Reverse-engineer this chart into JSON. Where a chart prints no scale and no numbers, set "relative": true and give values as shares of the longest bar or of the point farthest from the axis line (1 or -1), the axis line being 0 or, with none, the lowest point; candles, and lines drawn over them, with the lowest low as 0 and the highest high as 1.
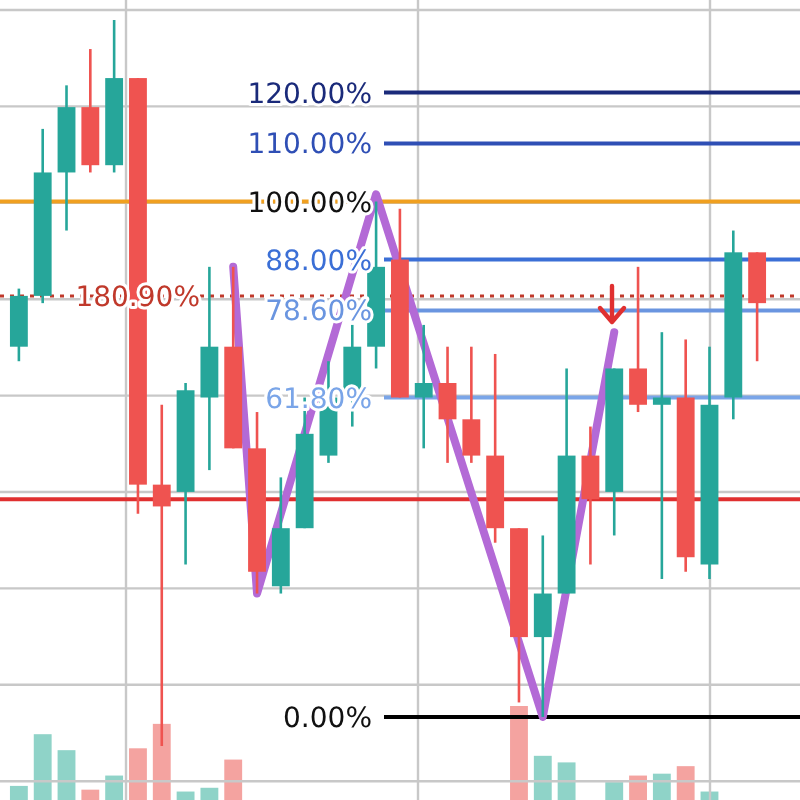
{
  "chart_data": [
    {
      "type": "candlestick",
      "relative": true,
      "grid": true,
      "categories": [
        null,
        null,
        null,
        null,
        null,
        null,
        null,
        null,
        null,
        null,
        null,
        null,
        null,
        null,
        null,
        null,
        null,
        null,
        null,
        null,
        null,
        null,
        null,
        null,
        null,
        null,
        null,
        null,
        null,
        null,
        null,
        null
      ],
      "ohlc": [
        [
          0.55,
          0.63,
          0.53,
          0.62
        ],
        [
          0.62,
          0.85,
          0.61,
          0.79
        ],
        [
          0.79,
          0.91,
          0.71,
          0.88
        ],
        [
          0.88,
          0.96,
          0.79,
          0.8
        ],
        [
          0.8,
          1,
          0.79,
          0.92
        ],
        [
          0.92,
          0.92,
          0.32,
          0.36
        ],
        [
          0.36,
          0.47,
          0,
          0.33
        ],
        [
          0.35,
          0.5,
          0.25,
          0.49
        ],
        [
          0.48,
          0.66,
          0.38,
          0.55
        ],
        [
          0.55,
          0.66,
          0.41,
          0.41
        ],
        [
          0.41,
          0.46,
          0.21,
          0.24
        ],
        [
          0.22,
          0.37,
          0.21,
          0.3
        ],
        [
          0.3,
          0.48,
          0.3,
          0.43
        ],
        [
          0.4,
          0.53,
          0.39,
          0.48
        ],
        [
          0.48,
          0.58,
          0.44,
          0.55
        ],
        [
          0.55,
          0.75,
          0.52,
          0.66
        ],
        [
          0.67,
          0.74,
          0.48,
          0.48
        ],
        [
          0.48,
          0.58,
          0.41,
          0.5
        ],
        [
          0.5,
          0.55,
          0.39,
          0.45
        ],
        [
          0.45,
          0.55,
          0.39,
          0.4
        ],
        [
          0.4,
          0.54,
          0.28,
          0.3
        ],
        [
          0.3,
          0.3,
          0.06,
          0.15
        ],
        [
          0.15,
          0.29,
          0.04,
          0.21
        ],
        [
          0.21,
          0.52,
          0.21,
          0.4
        ],
        [
          0.4,
          0.44,
          0.25,
          0.34
        ],
        [
          0.35,
          0.52,
          0.29,
          0.52
        ],
        [
          0.52,
          0.66,
          0.46,
          0.47
        ],
        [
          0.47,
          0.57,
          0.23,
          0.48
        ],
        [
          0.48,
          0.56,
          0.24,
          0.26
        ],
        [
          0.25,
          0.55,
          0.23,
          0.47
        ],
        [
          0.48,
          0.71,
          0.45,
          0.68
        ],
        [
          0.68,
          0.68,
          0.53,
          0.61
        ]
      ],
      "series": [
        {
          "type": "line",
          "color": "#b36ad6",
          "values": [
            null,
            null,
            null,
            null,
            null,
            null,
            null,
            null,
            null,
            0.66,
            0.21,
            null,
            null,
            null,
            null,
            0.76,
            null,
            null,
            null,
            null,
            null,
            null,
            0.04,
            null,
            null,
            0.57,
            null,
            null,
            null,
            null,
            null,
            null
          ]
        }
      ],
      "ref_lines": [
        {
          "axis": "y",
          "value": 0.9,
          "color": "#1a2a7a"
        },
        {
          "axis": "y",
          "value": 0.83,
          "color": "#2f4fb5"
        },
        {
          "axis": "y",
          "value": 0.75,
          "color": "#f0a020"
        },
        {
          "axis": "y",
          "value": 0.67,
          "color": "#3b6fd6"
        },
        {
          "axis": "y",
          "value": 0.6,
          "color": "#6a95e0"
        },
        {
          "axis": "y",
          "value": 0.48,
          "color": "#7aa5e8"
        },
        {
          "axis": "y",
          "value": 0.04,
          "color": "#000000"
        },
        {
          "axis": "y",
          "value": 0.62,
          "color": "#c0392b",
          "line_style": "dotted"
        },
        {
          "axis": "y",
          "value": 0.34,
          "color": "#e03030"
        }
      ],
      "annotations": [
        "120.00%",
        "110.00%",
        "100.00%",
        "88.00%",
        "78.60%",
        "61.80%",
        "0.00%",
        "180.90%"
      ]
    },
    {
      "type": "bar",
      "relative": true,
      "categories": [
        null,
        null,
        null,
        null,
        null,
        null,
        null,
        null,
        null,
        null,
        null,
        null,
        null,
        null,
        null,
        null,
        null,
        null,
        null,
        null,
        null,
        null,
        null,
        null,
        null,
        null,
        null,
        null,
        null,
        null,
        null,
        null
      ],
      "values": [
        0.15,
        0.7,
        0.53,
        0.11,
        0.26,
        0.55,
        0.81,
        0.09,
        0.13,
        0.43,
        null,
        null,
        null,
        null,
        null,
        null,
        null,
        null,
        null,
        null,
        null,
        1,
        0.47,
        0.4,
        null,
        0.19,
        0.26,
        0.28,
        0.36,
        0.09,
        null,
        null
      ],
      "colors": [
        "#8fd3c8",
        "#8fd3c8",
        "#8fd3c8",
        "#f4a3a0",
        "#8fd3c8",
        "#f4a3a0",
        "#f4a3a0",
        "#8fd3c8",
        "#8fd3c8",
        "#f4a3a0",
        "#f4a3a0",
        "#f4a3a0",
        "#8fd3c8",
        "#8fd3c8",
        "#8fd3c8",
        "#8fd3c8",
        "#f4a3a0",
        "#8fd3c8",
        "#f4a3a0",
        "#f4a3a0",
        "#f4a3a0",
        "#f4a3a0",
        "#8fd3c8",
        "#8fd3c8",
        "#f4a3a0",
        "#8fd3c8",
        "#f4a3a0",
        "#8fd3c8",
        "#f4a3a0",
        "#8fd3c8",
        "#8fd3c8",
        "#f4a3a0"
      ]
    }
  ]
}
